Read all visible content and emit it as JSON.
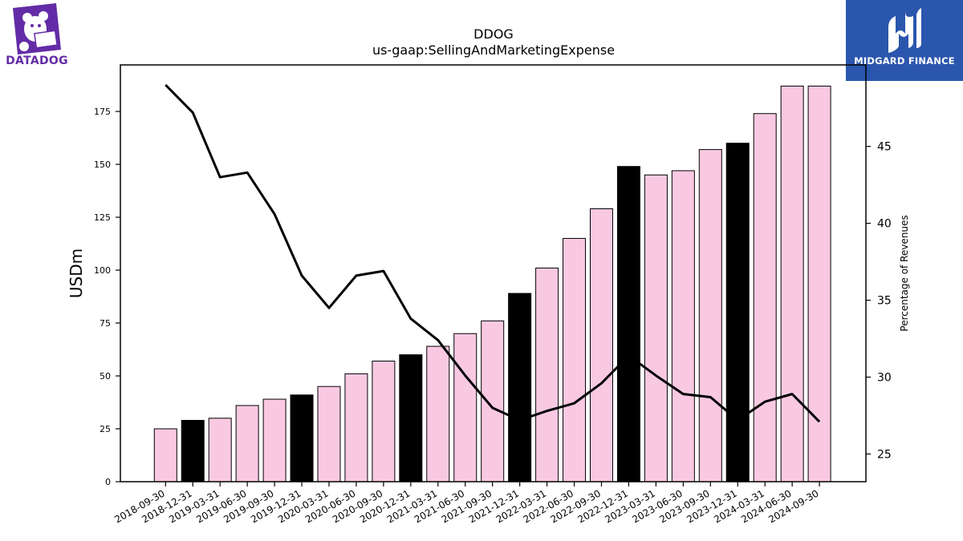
{
  "branding": {
    "left_logo_text": "DATADOG",
    "right_logo_text": "MIDGARD FINANCE",
    "left_color": "#632ca6",
    "right_bg_color": "#2b56ad"
  },
  "chart_data": {
    "type": "bar",
    "title": "DDOG",
    "subtitle": "us-gaap:SellingAndMarketingExpense",
    "ylabel": "USDm",
    "y2label": "Percentage of Revenues",
    "ylim": [
      0,
      197
    ],
    "y2lim": [
      23.2,
      50.3
    ],
    "yticks": [
      0,
      25,
      50,
      75,
      100,
      125,
      150,
      175
    ],
    "y2ticks": [
      25,
      30,
      35,
      40,
      45
    ],
    "grid": false,
    "categories": [
      "2018-09-30",
      "2018-12-31",
      "2019-03-31",
      "2019-06-30",
      "2019-09-30",
      "2019-12-31",
      "2020-03-31",
      "2020-06-30",
      "2020-09-30",
      "2020-12-31",
      "2021-03-31",
      "2021-06-30",
      "2021-09-30",
      "2021-12-31",
      "2022-03-31",
      "2022-06-30",
      "2022-09-30",
      "2022-12-31",
      "2023-03-31",
      "2023-06-30",
      "2023-09-30",
      "2023-12-31",
      "2024-03-31",
      "2024-06-30",
      "2024-09-30"
    ],
    "series": [
      {
        "values": [
          25,
          29,
          30,
          36,
          39,
          41,
          45,
          51,
          57,
          60,
          64,
          70,
          76,
          89,
          101,
          115,
          129,
          149,
          145,
          147,
          157,
          160,
          174,
          187,
          187
        ],
        "highlight": [
          false,
          true,
          false,
          false,
          false,
          true,
          false,
          false,
          false,
          true,
          false,
          false,
          false,
          true,
          false,
          false,
          false,
          true,
          false,
          false,
          false,
          true,
          false,
          false,
          false
        ],
        "color": "#f9c9e2",
        "highlight_color": "#000000"
      },
      {
        "axis": "right",
        "type": "line",
        "values": [
          49.0,
          47.2,
          43.0,
          43.3,
          40.6,
          36.6,
          34.5,
          36.6,
          36.9,
          33.8,
          32.4,
          30.1,
          28.0,
          27.2,
          27.8,
          28.3,
          29.6,
          31.4,
          30.1,
          28.9,
          28.7,
          27.2,
          28.4,
          28.9,
          27.1
        ],
        "color": "#000000"
      }
    ]
  }
}
